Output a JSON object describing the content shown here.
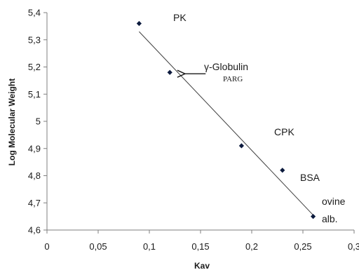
{
  "chart_data": {
    "type": "scatter",
    "xlabel": "Kav",
    "ylabel": "Log Molecular Weight",
    "xlim": [
      0,
      0.3
    ],
    "ylim": [
      4.6,
      5.4
    ],
    "x_ticks": [
      "0",
      "0,05",
      "0,1",
      "0,15",
      "0,2",
      "0,25",
      "0,3"
    ],
    "y_ticks": [
      "4,6",
      "4,7",
      "4,8",
      "4,9",
      "5",
      "5,1",
      "5,2",
      "5,3",
      "5,4"
    ],
    "x_tick_values": [
      0,
      0.05,
      0.1,
      0.15,
      0.2,
      0.25,
      0.3
    ],
    "y_tick_values": [
      4.6,
      4.7,
      4.8,
      4.9,
      5.0,
      5.1,
      5.2,
      5.3,
      5.4
    ],
    "grid": false,
    "points": [
      {
        "x": 0.09,
        "y": 5.36
      },
      {
        "x": 0.12,
        "y": 5.18
      },
      {
        "x": 0.19,
        "y": 4.91
      },
      {
        "x": 0.23,
        "y": 4.82
      },
      {
        "x": 0.26,
        "y": 4.65
      }
    ],
    "trendline": {
      "x1": 0.09,
      "y1": 5.33,
      "x2": 0.26,
      "y2": 4.655
    },
    "annotations": {
      "pk": "PK",
      "globulin": "γ-Globulin",
      "parg": "PARG",
      "cpk": "CPK",
      "bsa": "BSA",
      "ovine": "ovine",
      "alb": "alb."
    },
    "arrow": {
      "from_x": 0.155,
      "to_x": 0.128,
      "y": 5.175
    },
    "colors": {
      "marker": "#0d1b3e",
      "line": "#404040",
      "axis": "#7f7f7f",
      "text": "#1a1a1a"
    }
  }
}
